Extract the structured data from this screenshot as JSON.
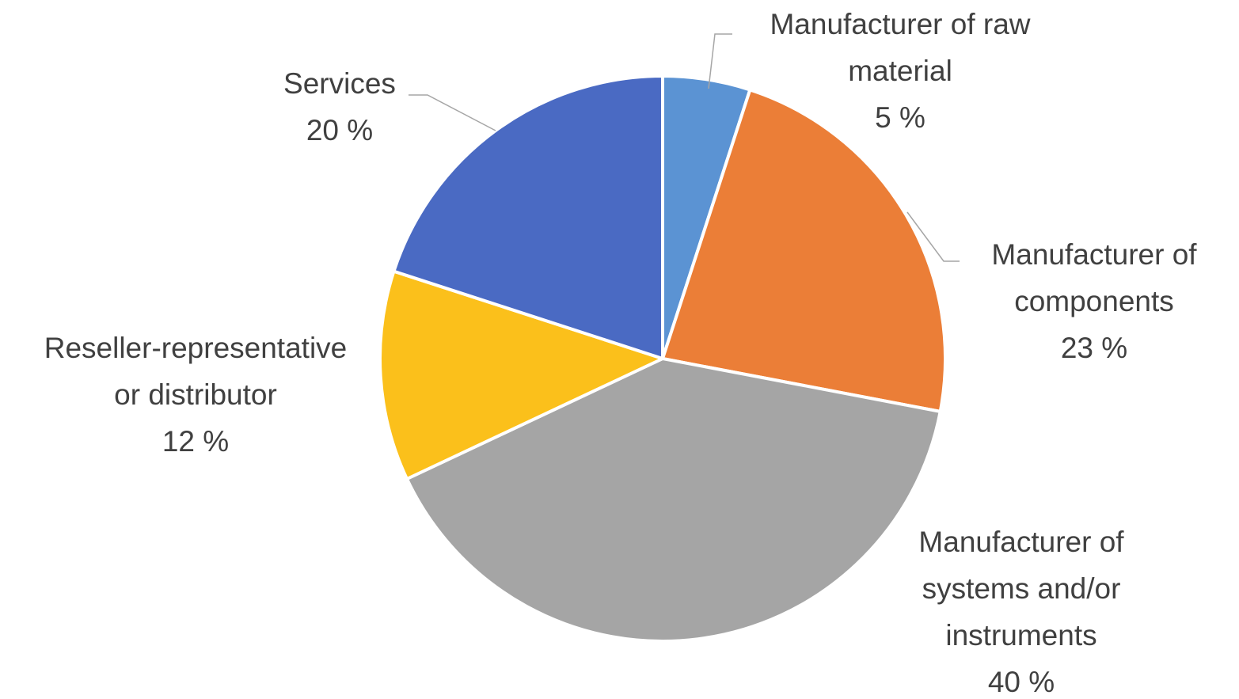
{
  "chart_data": {
    "type": "pie",
    "start_angle_deg": 0,
    "direction": "clockwise",
    "label_color": "#404040",
    "leader_color": "#a6a6a6",
    "slice_border_color": "#ffffff",
    "slices": [
      {
        "label_lines": [
          "Manufacturer of raw",
          "material"
        ],
        "value_label": "5 %",
        "value": 5,
        "color": "#5b93d3"
      },
      {
        "label_lines": [
          "Manufacturer of",
          "components"
        ],
        "value_label": "23 %",
        "value": 23,
        "color": "#eb7e37"
      },
      {
        "label_lines": [
          "Manufacturer of",
          "systems and/or",
          "instruments"
        ],
        "value_label": "40 %",
        "value": 40,
        "color": "#a5a5a5"
      },
      {
        "label_lines": [
          "Reseller-representative",
          "or distributor"
        ],
        "value_label": "12 %",
        "value": 12,
        "color": "#fbc01b"
      },
      {
        "label_lines": [
          "Services"
        ],
        "value_label": "20 %",
        "value": 20,
        "color": "#4a6ac3"
      }
    ]
  }
}
